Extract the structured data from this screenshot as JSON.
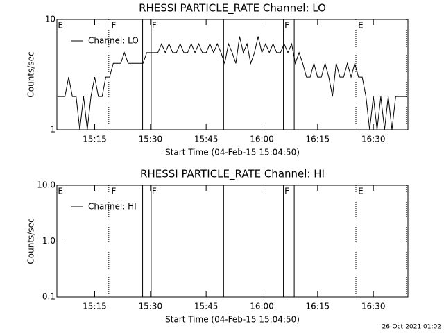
{
  "chart_data": [
    {
      "type": "line",
      "title": "RHESSI PARTICLE_RATE Channel: LO",
      "xlabel": "Start Time (04-Feb-15 15:04:50)",
      "ylabel": "Counts/sec",
      "log_y": true,
      "ylim": [
        1,
        10
      ],
      "yticks": [
        1,
        10
      ],
      "xlim": [
        904.83,
        999.3
      ],
      "xticks": [
        {
          "value": 915,
          "label": "15:15"
        },
        {
          "value": 930,
          "label": "15:30"
        },
        {
          "value": 945,
          "label": "15:45"
        },
        {
          "value": 960,
          "label": "16:00"
        },
        {
          "value": 975,
          "label": "16:15"
        },
        {
          "value": 990,
          "label": "16:30"
        }
      ],
      "flags": [
        {
          "label": "E",
          "x": 904.9
        },
        {
          "label": "F",
          "x": 919.3
        },
        {
          "label": "F",
          "x": 930.2
        },
        {
          "label": "F",
          "x": 965.9
        },
        {
          "label": "E",
          "x": 985.7
        }
      ],
      "flag_lines": [
        {
          "x": 918.8,
          "style": "dotted"
        },
        {
          "x": 927.9,
          "style": "solid"
        },
        {
          "x": 930.2,
          "style": "solid"
        },
        {
          "x": 949.7,
          "style": "solid"
        },
        {
          "x": 965.8,
          "style": "solid"
        },
        {
          "x": 968.7,
          "style": "solid"
        },
        {
          "x": 985.3,
          "style": "dotted"
        },
        {
          "x": 998.9,
          "style": "dotted"
        }
      ],
      "series": [
        {
          "name": "Channel: LO",
          "color": "#000000",
          "x": [
            905,
            906,
            907,
            908,
            909,
            910,
            911,
            912,
            913,
            914,
            915,
            916,
            917,
            918,
            919,
            920,
            921,
            922,
            923,
            924,
            925,
            926,
            927,
            928,
            929,
            930,
            931,
            932,
            933,
            934,
            935,
            936,
            937,
            938,
            939,
            940,
            941,
            942,
            943,
            944,
            945,
            946,
            947,
            948,
            949,
            950,
            951,
            952,
            953,
            954,
            955,
            956,
            957,
            958,
            959,
            960,
            961,
            962,
            963,
            964,
            965,
            966,
            967,
            968,
            969,
            970,
            971,
            972,
            973,
            974,
            975,
            976,
            977,
            978,
            979,
            980,
            981,
            982,
            983,
            984,
            985,
            986,
            987,
            988,
            989,
            990,
            991,
            992,
            993,
            994,
            995,
            996,
            997,
            998,
            999
          ],
          "values": [
            2,
            2,
            2,
            3,
            2,
            2,
            1,
            2,
            1,
            2,
            3,
            2,
            2,
            3,
            3,
            4,
            4,
            4,
            5,
            4,
            4,
            4,
            4,
            4,
            5,
            5,
            5,
            5,
            6,
            5,
            6,
            5,
            5,
            6,
            5,
            5,
            6,
            5,
            6,
            5,
            5,
            6,
            5,
            6,
            5,
            4,
            6,
            5,
            4,
            7,
            5,
            6,
            4,
            5,
            7,
            5,
            6,
            5,
            6,
            5,
            5,
            6,
            5,
            6,
            4,
            5,
            4,
            3,
            3,
            4,
            3,
            3,
            4,
            3,
            2,
            4,
            3,
            3,
            4,
            3,
            4,
            3,
            3,
            2,
            1,
            2,
            1,
            2,
            1,
            2,
            1,
            2,
            2,
            2,
            2
          ]
        }
      ]
    },
    {
      "type": "line",
      "title": "RHESSI PARTICLE_RATE Channel: HI",
      "xlabel": "Start Time (04-Feb-15 15:04:50)",
      "ylabel": "Counts/sec",
      "log_y": true,
      "ylim": [
        0.1,
        10
      ],
      "yticks": [
        {
          "value": 0.1,
          "label": "0.1"
        },
        {
          "value": 1,
          "label": "1.0"
        },
        {
          "value": 10,
          "label": "10.0"
        }
      ],
      "xlim": [
        904.83,
        999.3
      ],
      "xticks": [
        {
          "value": 915,
          "label": "15:15"
        },
        {
          "value": 930,
          "label": "15:30"
        },
        {
          "value": 945,
          "label": "15:45"
        },
        {
          "value": 960,
          "label": "16:00"
        },
        {
          "value": 975,
          "label": "16:15"
        },
        {
          "value": 990,
          "label": "16:30"
        }
      ],
      "flags": [
        {
          "label": "E",
          "x": 904.9
        },
        {
          "label": "F",
          "x": 919.3
        },
        {
          "label": "F",
          "x": 930.2
        },
        {
          "label": "F",
          "x": 965.9
        },
        {
          "label": "E",
          "x": 985.7
        }
      ],
      "flag_lines": [
        {
          "x": 918.8,
          "style": "dotted"
        },
        {
          "x": 927.9,
          "style": "solid"
        },
        {
          "x": 930.2,
          "style": "solid"
        },
        {
          "x": 949.7,
          "style": "solid"
        },
        {
          "x": 965.8,
          "style": "solid"
        },
        {
          "x": 968.7,
          "style": "solid"
        },
        {
          "x": 985.3,
          "style": "dotted"
        },
        {
          "x": 998.9,
          "style": "dotted"
        }
      ],
      "series": [
        {
          "name": "Channel: HI",
          "color": "#000000",
          "x": [],
          "values": []
        }
      ]
    }
  ],
  "footer": "26-Oct-2021 01:02"
}
